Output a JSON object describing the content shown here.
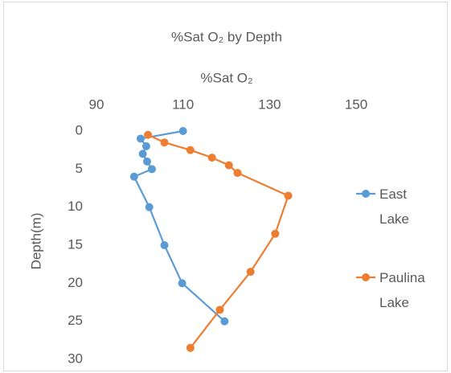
{
  "chart_data": {
    "type": "line",
    "title": "%Sat O₂ by Depth",
    "x_label": "%Sat O₂",
    "y_label": "Depth(m)",
    "x_axis_position": "top",
    "y_reversed": true,
    "xlim": [
      90,
      150
    ],
    "xticks": [
      90,
      110,
      130,
      150
    ],
    "ylim": [
      0,
      30
    ],
    "yticks": [
      0,
      5,
      10,
      15,
      20,
      25,
      30
    ],
    "grid": false,
    "legend": "right",
    "series": [
      {
        "name": "East Lake",
        "color": "#5b9bd5",
        "x": [
          110,
          100.2,
          101.5,
          100.7,
          101.7,
          102.8,
          98.7,
          102.2,
          105.7,
          109.8,
          119.6
        ],
        "values": [
          0,
          1,
          2,
          3,
          4,
          5,
          6,
          10,
          15,
          20,
          25
        ]
      },
      {
        "name": "Paulina Lake",
        "color": "#ed7d31",
        "x": [
          101.9,
          105.7,
          111.7,
          116.7,
          120.6,
          122.6,
          134.3,
          131.3,
          125.6,
          118.5,
          111.7
        ],
        "values": [
          0.5,
          1.5,
          2.5,
          3.5,
          4.5,
          5.5,
          8.5,
          13.5,
          18.5,
          23.5,
          28.5
        ]
      }
    ]
  }
}
